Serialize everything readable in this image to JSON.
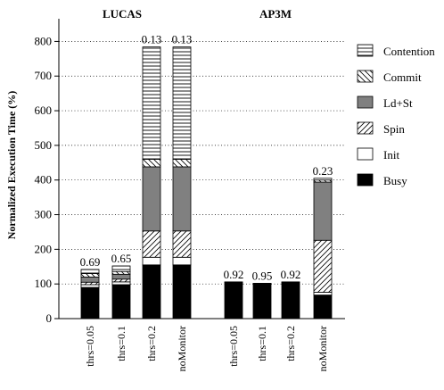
{
  "chart_data": {
    "type": "bar",
    "stacked": true,
    "ylabel": "Normalized Execution Time (%)",
    "ylim": [
      0,
      850
    ],
    "yticks": [
      0,
      100,
      200,
      300,
      400,
      500,
      600,
      700,
      800
    ],
    "grid": "horizontal dotted",
    "legend_position": "right",
    "groups": [
      {
        "title": "LUCAS",
        "bars": [
          {
            "label": "thrs=0.05",
            "annotation": "0.69",
            "segments": {
              "Busy": 90,
              "Init": 8,
              "Spin": 7,
              "Ld+St": 15,
              "Commit": 10,
              "Contention": 12
            }
          },
          {
            "label": "thrs=0.1",
            "annotation": "0.65",
            "segments": {
              "Busy": 98,
              "Init": 8,
              "Spin": 8,
              "Ld+St": 14,
              "Commit": 8,
              "Contention": 16
            }
          },
          {
            "label": "thrs=0.2",
            "annotation": "0.13",
            "segments": {
              "Busy": 155,
              "Init": 22,
              "Spin": 76,
              "Ld+St": 185,
              "Commit": 22,
              "Contention": 324
            }
          },
          {
            "label": "noMonitor",
            "annotation": "0.13",
            "segments": {
              "Busy": 155,
              "Init": 22,
              "Spin": 76,
              "Ld+St": 185,
              "Commit": 22,
              "Contention": 324
            }
          }
        ]
      },
      {
        "title": "AP3M",
        "bars": [
          {
            "label": "thrs=0.05",
            "annotation": "0.92",
            "segments": {
              "Busy": 104,
              "Init": 0,
              "Spin": 0,
              "Ld+St": 0,
              "Commit": 2,
              "Contention": 0
            }
          },
          {
            "label": "thrs=0.1",
            "annotation": "0.95",
            "segments": {
              "Busy": 101,
              "Init": 0,
              "Spin": 0,
              "Ld+St": 0,
              "Commit": 1,
              "Contention": 0
            }
          },
          {
            "label": "thrs=0.2",
            "annotation": "0.92",
            "segments": {
              "Busy": 104,
              "Init": 0,
              "Spin": 0,
              "Ld+St": 0,
              "Commit": 2,
              "Contention": 0
            }
          },
          {
            "label": "noMonitor",
            "annotation": "0.23",
            "segments": {
              "Busy": 68,
              "Init": 8,
              "Spin": 150,
              "Ld+St": 168,
              "Commit": 6,
              "Contention": 5
            }
          }
        ]
      }
    ],
    "series": [
      {
        "name": "Busy",
        "fill": "#000000",
        "pattern": "solid"
      },
      {
        "name": "Init",
        "fill": "#ffffff",
        "pattern": "solid"
      },
      {
        "name": "Spin",
        "fill": "#ffffff",
        "pattern": "diagonal-forward"
      },
      {
        "name": "Ld+St",
        "fill": "#808080",
        "pattern": "solid"
      },
      {
        "name": "Commit",
        "fill": "#ffffff",
        "pattern": "diagonal-backward"
      },
      {
        "name": "Contention",
        "fill": "#ffffff",
        "pattern": "horizontal"
      }
    ],
    "legend_order": [
      "Contention",
      "Commit",
      "Ld+St",
      "Spin",
      "Init",
      "Busy"
    ]
  }
}
